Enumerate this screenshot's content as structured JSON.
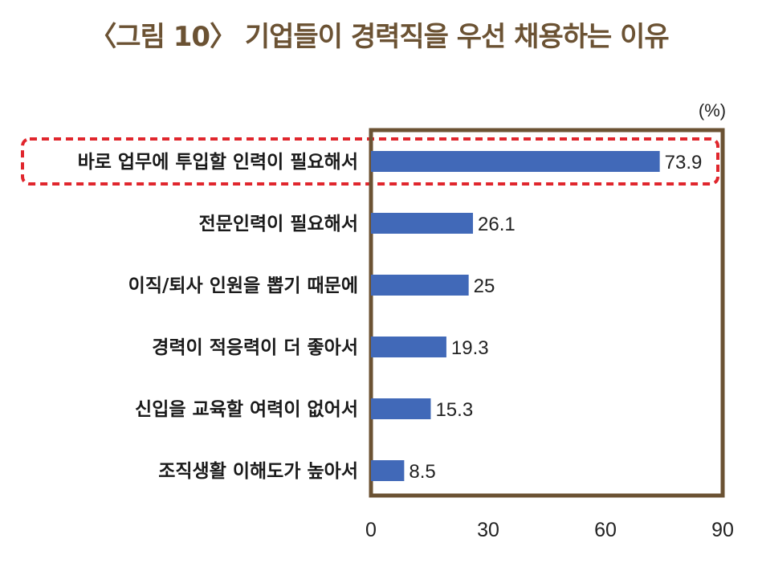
{
  "title": "〈그림 10〉 기업들이 경력직을 우선 채용하는 이유",
  "chart_data": {
    "type": "bar",
    "orientation": "horizontal",
    "unit": "(%)",
    "categories": [
      "바로 업무에 투입할 인력이 필요해서",
      "전문인력이 필요해서",
      "이직/퇴사 인원을 뽑기 때문에",
      "경력이 적응력이 더 좋아서",
      "신입을 교육할 여력이 없어서",
      "조직생활 이해도가 높아서"
    ],
    "values": [
      73.9,
      26.1,
      25,
      19.3,
      15.3,
      8.5
    ],
    "value_labels": [
      "73.9",
      "26.1",
      "25",
      "19.3",
      "15.3",
      "8.5"
    ],
    "xlim": [
      0,
      90
    ],
    "xticks": [
      "0",
      "30",
      "60",
      "90"
    ],
    "highlighted_category_index": 0,
    "grid": false,
    "colors": {
      "bar": "#4169b8",
      "frame": "#6b5233",
      "highlight": "#e0262d",
      "title": "#6b5233"
    }
  }
}
